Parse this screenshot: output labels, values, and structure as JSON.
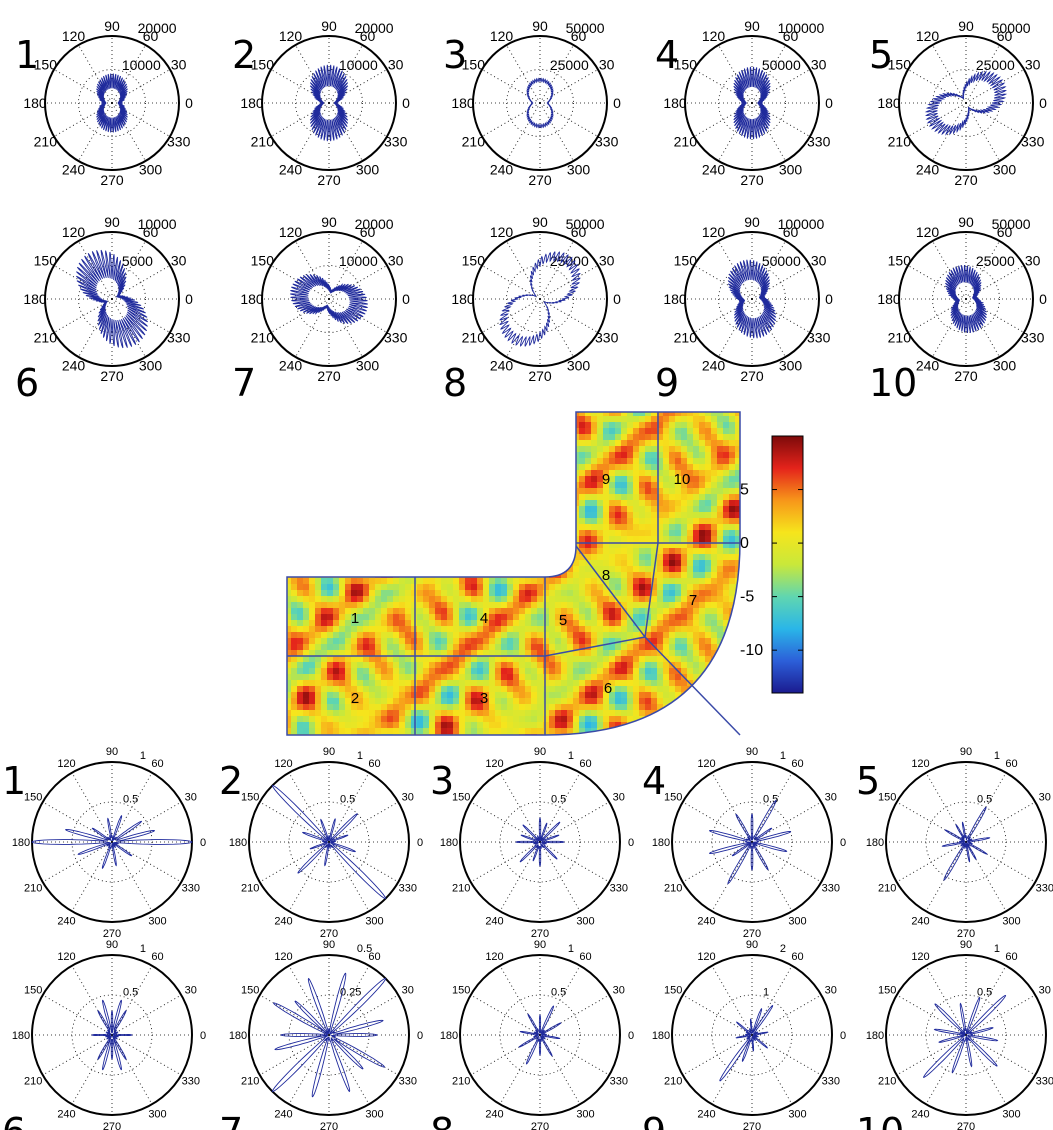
{
  "chart_data": [
    {
      "type": "polar",
      "group": "top",
      "angle_labels": [
        "0",
        "30",
        "60",
        "90",
        "120",
        "150",
        "180",
        "210",
        "240",
        "270",
        "300",
        "330"
      ],
      "series_color": "#1f2a9c",
      "panels": [
        {
          "number": "1",
          "rmax": 20000,
          "ticks": [
            "10000",
            "20000"
          ],
          "shape": {
            "a": 0.1,
            "b": 0.3,
            "tilt": 90,
            "spike": 0.55,
            "spin": 0
          }
        },
        {
          "number": "2",
          "rmax": 20000,
          "ticks": [
            "10000",
            "20000"
          ],
          "shape": {
            "a": 0.08,
            "b": 0.45,
            "tilt": 90,
            "spike": 0.6,
            "spin": 0
          }
        },
        {
          "number": "3",
          "rmax": 50000,
          "ticks": [
            "25000",
            "50000"
          ],
          "shape": {
            "a": 0.08,
            "b": 0.25,
            "tilt": 90,
            "spike": 0.15,
            "spin": 0
          }
        },
        {
          "number": "4",
          "rmax": 100000,
          "ticks": [
            "50000",
            "100000"
          ],
          "shape": {
            "a": 0.1,
            "b": 0.4,
            "tilt": 90,
            "spike": 0.6,
            "spin": 0
          }
        },
        {
          "number": "5",
          "rmax": 50000,
          "ticks": [
            "25000",
            "50000"
          ],
          "shape": {
            "a": 0.05,
            "b": 0.55,
            "tilt": 30,
            "spike": 0.3,
            "spin": 0
          }
        },
        {
          "number": "6",
          "rmax": 10000,
          "ticks": [
            "5000",
            "10000"
          ],
          "shape": {
            "a": 0.08,
            "b": 0.65,
            "tilt": 115,
            "spike": 0.6,
            "spin": 0
          }
        },
        {
          "number": "7",
          "rmax": 20000,
          "ticks": [
            "10000",
            "20000"
          ],
          "shape": {
            "a": 0.1,
            "b": 0.45,
            "tilt": 165,
            "spike": 0.5,
            "spin": 0
          }
        },
        {
          "number": "8",
          "rmax": 50000,
          "ticks": [
            "25000",
            "50000"
          ],
          "shape": {
            "a": 0.04,
            "b": 0.7,
            "tilt": 55,
            "spike": 0.2,
            "spin": 0
          }
        },
        {
          "number": "9",
          "rmax": 100000,
          "ticks": [
            "50000",
            "100000"
          ],
          "shape": {
            "a": 0.15,
            "b": 0.4,
            "tilt": 100,
            "spike": 0.55,
            "spin": 0
          }
        },
        {
          "number": "10",
          "rmax": 50000,
          "ticks": [
            "25000",
            "50000"
          ],
          "shape": {
            "a": 0.12,
            "b": 0.35,
            "tilt": 100,
            "spike": 0.55,
            "spin": 0
          }
        }
      ]
    },
    {
      "type": "heatmap",
      "group": "center",
      "colorbar_ticks": [
        "5",
        "0",
        "-5",
        "-10"
      ],
      "colorbar_range": [
        -14,
        10
      ],
      "colorbar_colors": [
        "#1b1b8f",
        "#2c5fd9",
        "#2ab6e8",
        "#60d6b0",
        "#c9e83a",
        "#f6e51c",
        "#f7961a",
        "#e4231b",
        "#7d0a0a"
      ],
      "regions": [
        "1",
        "2",
        "3",
        "4",
        "5",
        "6",
        "7",
        "8",
        "9",
        "10"
      ]
    },
    {
      "type": "polar",
      "group": "bottom",
      "angle_labels": [
        "0",
        "30",
        "60",
        "90",
        "120",
        "150",
        "180",
        "210",
        "240",
        "270",
        "300",
        "330"
      ],
      "series_color": "#1f2a9c",
      "panels": [
        {
          "number": "1",
          "rmax": 1,
          "ticks": [
            "0.5",
            "1"
          ],
          "petals": [
            [
              0,
              1.0
            ],
            [
              180,
              1.0
            ],
            [
              165,
              0.6
            ],
            [
              15,
              0.55
            ],
            [
              35,
              0.45
            ],
            [
              200,
              0.45
            ],
            [
              145,
              0.3
            ],
            [
              325,
              0.3
            ],
            [
              70,
              0.35
            ],
            [
              250,
              0.35
            ],
            [
              100,
              0.3
            ],
            [
              280,
              0.3
            ]
          ]
        },
        {
          "number": "2",
          "rmax": 1,
          "ticks": [
            "0.5",
            "1"
          ],
          "petals": [
            [
              135,
              1.0
            ],
            [
              315,
              1.0
            ],
            [
              45,
              0.5
            ],
            [
              225,
              0.55
            ],
            [
              160,
              0.35
            ],
            [
              340,
              0.35
            ],
            [
              75,
              0.3
            ],
            [
              260,
              0.3
            ],
            [
              110,
              0.3
            ],
            [
              20,
              0.25
            ],
            [
              200,
              0.25
            ]
          ]
        },
        {
          "number": "3",
          "rmax": 1,
          "ticks": [
            "0.5",
            "1"
          ],
          "petals": [
            [
              45,
              0.35
            ],
            [
              225,
              0.35
            ],
            [
              135,
              0.3
            ],
            [
              315,
              0.3
            ],
            [
              0,
              0.3
            ],
            [
              180,
              0.3
            ],
            [
              90,
              0.3
            ],
            [
              270,
              0.3
            ],
            [
              160,
              0.25
            ],
            [
              20,
              0.25
            ],
            [
              250,
              0.25
            ],
            [
              70,
              0.25
            ]
          ]
        },
        {
          "number": "4",
          "rmax": 1,
          "ticks": [
            "0.5",
            "1"
          ],
          "petals": [
            [
              60,
              0.6
            ],
            [
              240,
              0.6
            ],
            [
              15,
              0.5
            ],
            [
              195,
              0.55
            ],
            [
              165,
              0.55
            ],
            [
              345,
              0.45
            ],
            [
              120,
              0.4
            ],
            [
              300,
              0.4
            ],
            [
              90,
              0.35
            ],
            [
              270,
              0.35
            ],
            [
              35,
              0.3
            ],
            [
              215,
              0.3
            ]
          ]
        },
        {
          "number": "5",
          "rmax": 1,
          "ticks": [
            "0.5",
            "1"
          ],
          "petals": [
            [
              60,
              0.5
            ],
            [
              240,
              0.55
            ],
            [
              150,
              0.3
            ],
            [
              330,
              0.3
            ],
            [
              10,
              0.3
            ],
            [
              190,
              0.3
            ],
            [
              100,
              0.25
            ],
            [
              280,
              0.25
            ],
            [
              120,
              0.25
            ],
            [
              300,
              0.25
            ]
          ]
        },
        {
          "number": "6",
          "rmax": 1,
          "ticks": [
            "0.5",
            "1"
          ],
          "petals": [
            [
              75,
              0.45
            ],
            [
              255,
              0.45
            ],
            [
              105,
              0.45
            ],
            [
              285,
              0.45
            ],
            [
              60,
              0.35
            ],
            [
              240,
              0.35
            ],
            [
              120,
              0.35
            ],
            [
              300,
              0.35
            ],
            [
              0,
              0.25
            ],
            [
              180,
              0.25
            ],
            [
              90,
              0.3
            ],
            [
              270,
              0.3
            ]
          ]
        },
        {
          "number": "7",
          "rmax": 0.5,
          "ticks": [
            "0.25",
            "0.5"
          ],
          "petals": [
            [
              45,
              1.0
            ],
            [
              225,
              1.0
            ],
            [
              150,
              0.8
            ],
            [
              330,
              0.8
            ],
            [
              0,
              0.6
            ],
            [
              180,
              0.6
            ],
            [
              15,
              0.7
            ],
            [
              195,
              0.7
            ],
            [
              75,
              0.8
            ],
            [
              255,
              0.8
            ],
            [
              110,
              0.75
            ],
            [
              290,
              0.75
            ],
            [
              135,
              0.6
            ],
            [
              315,
              0.6
            ]
          ]
        },
        {
          "number": "8",
          "rmax": 1,
          "ticks": [
            "0.5",
            "1"
          ],
          "petals": [
            [
              65,
              0.4
            ],
            [
              245,
              0.4
            ],
            [
              120,
              0.3
            ],
            [
              300,
              0.3
            ],
            [
              30,
              0.3
            ],
            [
              210,
              0.3
            ],
            [
              170,
              0.25
            ],
            [
              350,
              0.25
            ],
            [
              90,
              0.25
            ],
            [
              270,
              0.25
            ]
          ]
        },
        {
          "number": "9",
          "rmax": 2,
          "ticks": [
            "1",
            "2"
          ],
          "petals": [
            [
              55,
              0.45
            ],
            [
              235,
              0.7
            ],
            [
              70,
              0.35
            ],
            [
              250,
              0.35
            ],
            [
              140,
              0.25
            ],
            [
              320,
              0.25
            ],
            [
              10,
              0.2
            ],
            [
              190,
              0.2
            ],
            [
              95,
              0.2
            ],
            [
              275,
              0.2
            ]
          ]
        },
        {
          "number": "10",
          "rmax": 1,
          "ticks": [
            "0.5",
            "1"
          ],
          "petals": [
            [
              45,
              0.7
            ],
            [
              225,
              0.75
            ],
            [
              135,
              0.55
            ],
            [
              315,
              0.55
            ],
            [
              70,
              0.5
            ],
            [
              250,
              0.5
            ],
            [
              170,
              0.4
            ],
            [
              350,
              0.4
            ],
            [
              100,
              0.4
            ],
            [
              280,
              0.4
            ],
            [
              15,
              0.35
            ],
            [
              195,
              0.35
            ]
          ]
        }
      ]
    }
  ]
}
